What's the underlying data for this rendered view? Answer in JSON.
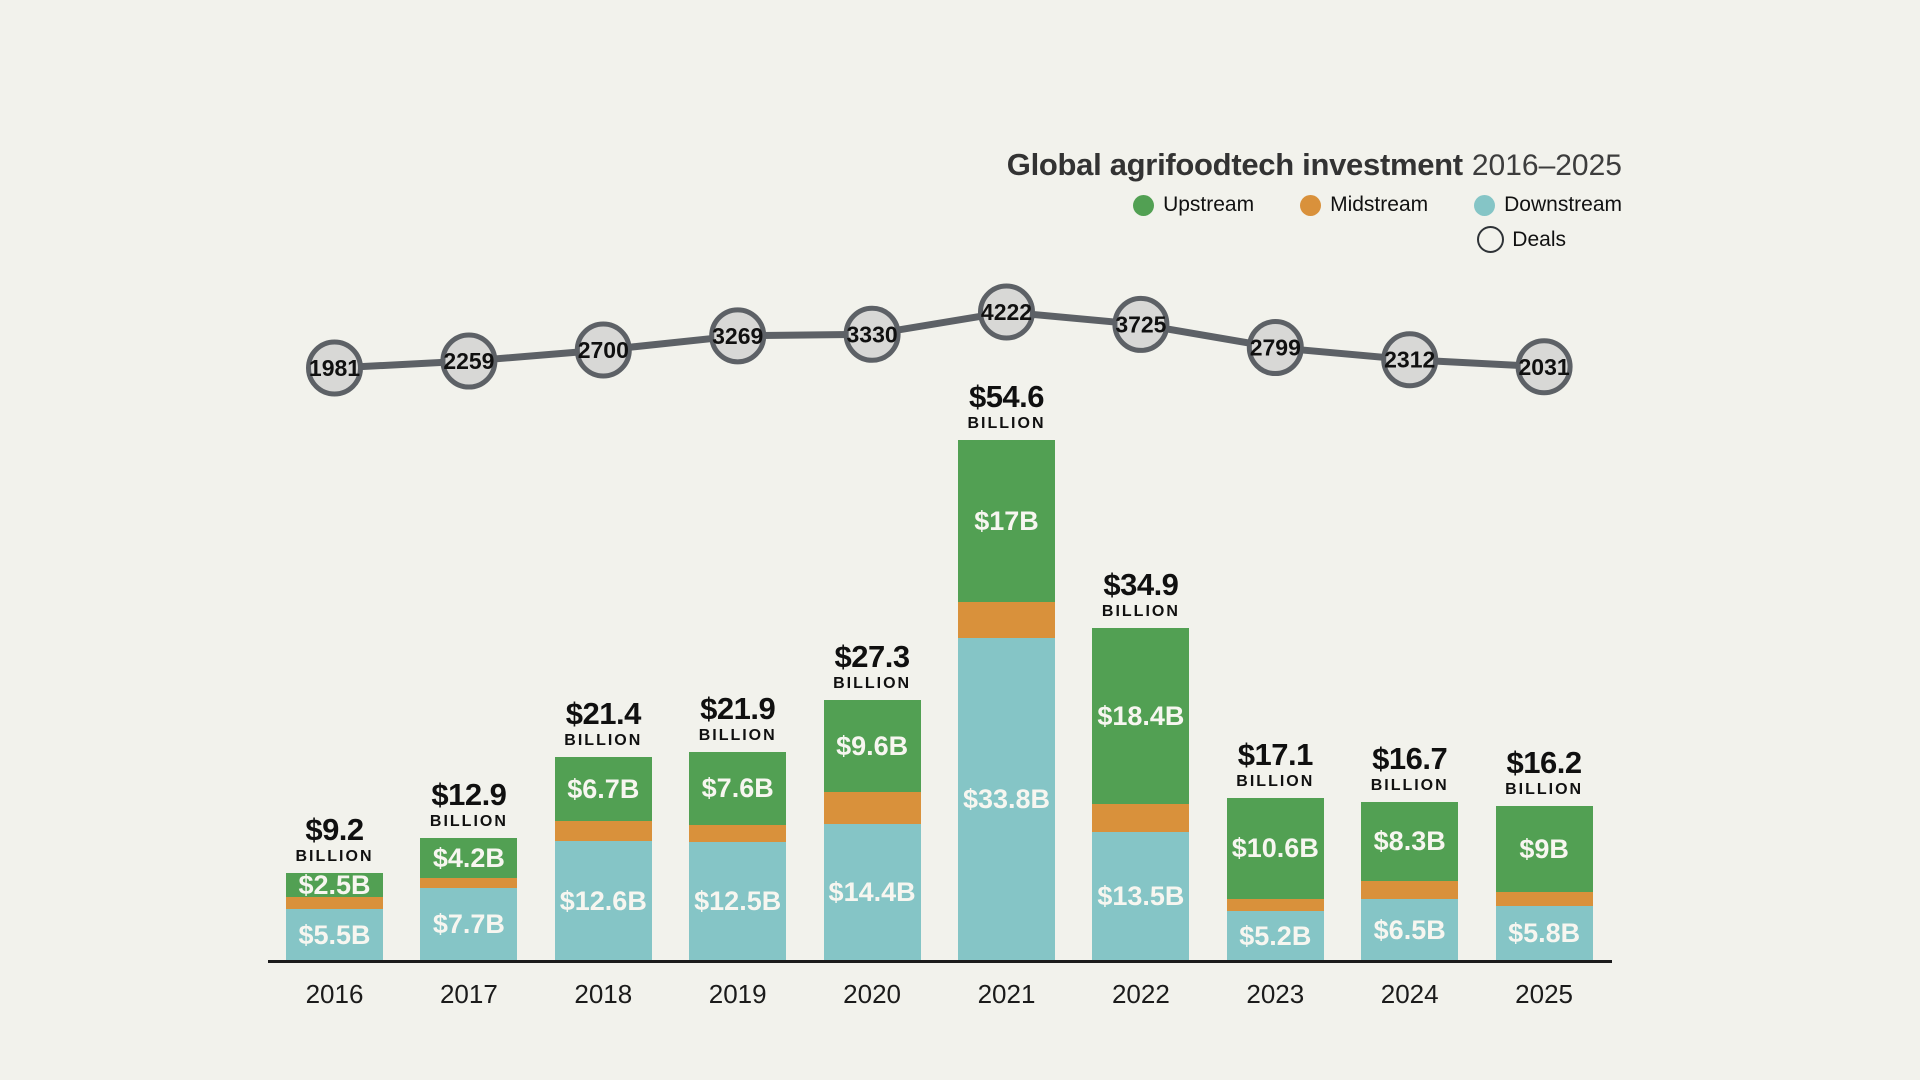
{
  "header": {
    "title": "Global agrifoodtech investment",
    "subtitle": "2016–2025"
  },
  "legend": {
    "series": [
      {
        "label": "Upstream",
        "color": "#52a053"
      },
      {
        "label": "Midstream",
        "color": "#d9913b"
      },
      {
        "label": "Downstream",
        "color": "#85c5c6"
      }
    ],
    "deals_label": "Deals"
  },
  "chart_data": {
    "type": "bar",
    "stacked": true,
    "title": "Global agrifoodtech investment",
    "subtitle": "2016–2025",
    "legend_position": "top-right",
    "grid": false,
    "ylim": [
      0,
      54.6
    ],
    "categories": [
      "2016",
      "2017",
      "2018",
      "2019",
      "2020",
      "2021",
      "2022",
      "2023",
      "2024",
      "2025"
    ],
    "series": [
      {
        "name": "Upstream",
        "color": "#52a053",
        "values": [
          2.5,
          4.2,
          6.7,
          7.6,
          9.6,
          17,
          18.4,
          10.6,
          8.3,
          9
        ],
        "labels": [
          "$2.5B",
          "$4.2B",
          "$6.7B",
          "$7.6B",
          "$9.6B",
          "$17B",
          "$18.4B",
          "$10.6B",
          "$8.3B",
          "$9B"
        ]
      },
      {
        "name": "Midstream",
        "color": "#d9913b",
        "values": [
          1.2,
          1.0,
          2.1,
          1.8,
          3.3,
          3.8,
          3.0,
          1.3,
          1.9,
          1.4
        ],
        "labels": [
          "",
          "",
          "",
          "",
          "",
          "",
          "",
          "",
          "",
          ""
        ]
      },
      {
        "name": "Downstream",
        "color": "#85c5c6",
        "values": [
          5.5,
          7.7,
          12.6,
          12.5,
          14.4,
          33.8,
          13.5,
          5.2,
          6.5,
          5.8
        ],
        "labels": [
          "$5.5B",
          "$7.7B",
          "$12.6B",
          "$12.5B",
          "$14.4B",
          "$33.8B",
          "$13.5B",
          "$5.2B",
          "$6.5B",
          "$5.8B"
        ]
      }
    ],
    "totals": {
      "values": [
        9.2,
        12.9,
        21.4,
        21.9,
        27.3,
        54.6,
        34.9,
        17.1,
        16.7,
        16.2
      ],
      "labels": [
        "$9.2",
        "$12.9",
        "$21.4",
        "$21.9",
        "$27.3",
        "$54.6",
        "$34.9",
        "$17.1",
        "$16.7",
        "$16.2"
      ],
      "unit": "BILLION"
    },
    "deals": {
      "name": "Deals",
      "values": [
        1981,
        2259,
        2700,
        3269,
        3330,
        4222,
        3725,
        2799,
        2312,
        2031
      ]
    }
  },
  "colors": {
    "background": "#f2f2ec",
    "upstream": "#52a053",
    "midstream": "#d9913b",
    "downstream": "#85c5c6",
    "deals_fill": "#d8d8d6",
    "deals_stroke": "#5d6166",
    "text": "#1b1b1b"
  }
}
